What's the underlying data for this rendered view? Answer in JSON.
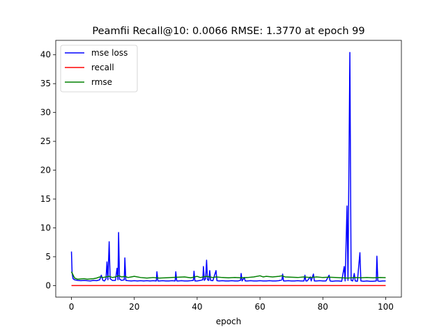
{
  "chart_data": {
    "type": "line",
    "title": "Peamfii Recall@10: 0.0066 RMSE: 1.3770 at epoch 99",
    "xlabel": "epoch",
    "ylabel": "",
    "xlim": [
      -5,
      105
    ],
    "ylim": [
      -2,
      42.5
    ],
    "xticks": [
      0,
      20,
      40,
      60,
      80,
      100
    ],
    "yticks": [
      0,
      5,
      10,
      15,
      20,
      25,
      30,
      35,
      40
    ],
    "grid": false,
    "legend_position": "top-left",
    "series": [
      {
        "name": "mse loss",
        "color": "#0000ff",
        "points": [
          [
            0,
            5.9
          ],
          [
            0.2,
            2.2
          ],
          [
            0.5,
            1.2
          ],
          [
            1,
            1.0
          ],
          [
            2,
            0.9
          ],
          [
            3,
            0.85
          ],
          [
            4,
            0.9
          ],
          [
            5,
            0.85
          ],
          [
            6,
            0.8
          ],
          [
            7,
            0.9
          ],
          [
            8,
            0.85
          ],
          [
            9,
            1.0
          ],
          [
            9.5,
            1.8
          ],
          [
            10,
            0.9
          ],
          [
            10.5,
            0.8
          ],
          [
            11,
            1.2
          ],
          [
            11.3,
            4.1
          ],
          [
            11.6,
            1.0
          ],
          [
            12,
            7.6
          ],
          [
            12.3,
            1.2
          ],
          [
            13,
            0.9
          ],
          [
            14,
            0.9
          ],
          [
            14.5,
            3.0
          ],
          [
            14.8,
            1.0
          ],
          [
            15,
            9.2
          ],
          [
            15.3,
            1.1
          ],
          [
            16,
            0.9
          ],
          [
            16.8,
            1.0
          ],
          [
            17,
            4.8
          ],
          [
            17.3,
            0.9
          ],
          [
            18,
            0.85
          ],
          [
            19,
            0.8
          ],
          [
            20,
            0.85
          ],
          [
            21,
            0.8
          ],
          [
            22,
            0.85
          ],
          [
            23,
            0.8
          ],
          [
            24,
            0.85
          ],
          [
            25,
            0.8
          ],
          [
            26,
            0.85
          ],
          [
            27,
            0.8
          ],
          [
            27.2,
            2.4
          ],
          [
            27.5,
            0.8
          ],
          [
            28,
            0.8
          ],
          [
            29,
            0.85
          ],
          [
            30,
            0.8
          ],
          [
            31,
            0.8
          ],
          [
            32,
            0.85
          ],
          [
            33,
            0.8
          ],
          [
            33.2,
            2.4
          ],
          [
            33.5,
            0.8
          ],
          [
            34,
            0.8
          ],
          [
            35,
            0.85
          ],
          [
            36,
            0.8
          ],
          [
            37,
            0.8
          ],
          [
            38,
            0.85
          ],
          [
            38.8,
            0.9
          ],
          [
            39,
            2.5
          ],
          [
            39.3,
            0.8
          ],
          [
            40,
            0.8
          ],
          [
            41,
            0.9
          ],
          [
            41.8,
            1.0
          ],
          [
            42,
            3.3
          ],
          [
            42.3,
            0.9
          ],
          [
            42.7,
            1.2
          ],
          [
            43,
            4.4
          ],
          [
            43.3,
            1.0
          ],
          [
            43.7,
            0.9
          ],
          [
            44,
            2.6
          ],
          [
            44.3,
            0.9
          ],
          [
            45,
            0.85
          ],
          [
            46,
            2.6
          ],
          [
            46.3,
            0.85
          ],
          [
            47,
            0.8
          ],
          [
            48,
            0.85
          ],
          [
            49,
            0.8
          ],
          [
            50,
            0.8
          ],
          [
            51,
            0.85
          ],
          [
            52,
            0.8
          ],
          [
            53,
            0.8
          ],
          [
            53.8,
            0.9
          ],
          [
            54,
            2.1
          ],
          [
            54.3,
            0.8
          ],
          [
            55,
            1.4
          ],
          [
            55.3,
            0.8
          ],
          [
            56,
            0.8
          ],
          [
            57,
            0.85
          ],
          [
            58,
            0.8
          ],
          [
            59,
            0.8
          ],
          [
            60,
            0.85
          ],
          [
            61,
            0.8
          ],
          [
            62,
            0.8
          ],
          [
            63,
            0.85
          ],
          [
            64,
            0.8
          ],
          [
            65,
            0.8
          ],
          [
            66,
            0.85
          ],
          [
            67,
            1.0
          ],
          [
            67.2,
            2.0
          ],
          [
            67.5,
            0.8
          ],
          [
            68,
            0.8
          ],
          [
            69,
            0.85
          ],
          [
            70,
            0.8
          ],
          [
            71,
            0.8
          ],
          [
            72,
            0.85
          ],
          [
            73,
            0.8
          ],
          [
            74,
            0.8
          ],
          [
            74.3,
            1.8
          ],
          [
            74.6,
            0.8
          ],
          [
            75,
            0.8
          ],
          [
            76,
            1.5
          ],
          [
            76.3,
            0.8
          ],
          [
            77,
            2.0
          ],
          [
            77.3,
            0.8
          ],
          [
            78,
            0.8
          ],
          [
            79,
            0.85
          ],
          [
            80,
            0.8
          ],
          [
            81,
            0.8
          ],
          [
            82,
            1.8
          ],
          [
            82.3,
            0.8
          ],
          [
            83,
            0.75
          ],
          [
            84,
            0.8
          ],
          [
            85,
            0.8
          ],
          [
            86,
            0.75
          ],
          [
            86.8,
            3.3
          ],
          [
            87.1,
            0.8
          ],
          [
            87.7,
            13.8
          ],
          [
            88,
            0.9
          ],
          [
            88.6,
            40.4
          ],
          [
            89,
            0.9
          ],
          [
            89.5,
            0.8
          ],
          [
            90,
            2.1
          ],
          [
            90.3,
            0.8
          ],
          [
            91,
            0.75
          ],
          [
            91.8,
            5.7
          ],
          [
            92.1,
            0.8
          ],
          [
            93,
            0.75
          ],
          [
            94,
            0.8
          ],
          [
            95,
            0.75
          ],
          [
            96,
            0.75
          ],
          [
            97,
            0.8
          ],
          [
            97.2,
            5.1
          ],
          [
            97.5,
            0.8
          ],
          [
            98,
            0.75
          ],
          [
            99,
            0.8
          ],
          [
            100,
            0.8
          ]
        ]
      },
      {
        "name": "recall",
        "color": "#ff0000",
        "points": [
          [
            0,
            0.01
          ],
          [
            10,
            0.01
          ],
          [
            20,
            0.008
          ],
          [
            30,
            0.007
          ],
          [
            40,
            0.007
          ],
          [
            50,
            0.007
          ],
          [
            60,
            0.007
          ],
          [
            70,
            0.007
          ],
          [
            80,
            0.007
          ],
          [
            90,
            0.007
          ],
          [
            100,
            0.0066
          ]
        ]
      },
      {
        "name": "rmse",
        "color": "#008000",
        "points": [
          [
            0,
            2.4
          ],
          [
            1,
            1.3
          ],
          [
            2,
            1.1
          ],
          [
            3,
            1.15
          ],
          [
            4,
            1.2
          ],
          [
            5,
            1.1
          ],
          [
            6,
            1.15
          ],
          [
            7,
            1.2
          ],
          [
            8,
            1.3
          ],
          [
            9,
            1.5
          ],
          [
            10,
            1.4
          ],
          [
            11,
            1.5
          ],
          [
            12,
            1.6
          ],
          [
            13,
            1.4
          ],
          [
            14,
            1.5
          ],
          [
            15,
            1.7
          ],
          [
            16,
            1.5
          ],
          [
            17,
            1.6
          ],
          [
            18,
            1.4
          ],
          [
            19,
            1.5
          ],
          [
            20,
            1.6
          ],
          [
            22,
            1.4
          ],
          [
            24,
            1.3
          ],
          [
            26,
            1.4
          ],
          [
            28,
            1.3
          ],
          [
            30,
            1.35
          ],
          [
            32,
            1.4
          ],
          [
            34,
            1.45
          ],
          [
            36,
            1.5
          ],
          [
            38,
            1.35
          ],
          [
            40,
            1.6
          ],
          [
            41,
            1.4
          ],
          [
            42,
            1.5
          ],
          [
            43,
            1.6
          ],
          [
            44,
            1.5
          ],
          [
            45,
            1.4
          ],
          [
            46,
            1.5
          ],
          [
            48,
            1.4
          ],
          [
            50,
            1.35
          ],
          [
            52,
            1.4
          ],
          [
            54,
            1.35
          ],
          [
            56,
            1.4
          ],
          [
            58,
            1.5
          ],
          [
            60,
            1.7
          ],
          [
            61,
            1.5
          ],
          [
            62,
            1.6
          ],
          [
            64,
            1.5
          ],
          [
            66,
            1.6
          ],
          [
            67,
            1.7
          ],
          [
            68,
            1.5
          ],
          [
            70,
            1.45
          ],
          [
            72,
            1.4
          ],
          [
            74,
            1.5
          ],
          [
            76,
            1.4
          ],
          [
            78,
            1.5
          ],
          [
            80,
            1.4
          ],
          [
            82,
            1.45
          ],
          [
            84,
            1.4
          ],
          [
            86,
            1.35
          ],
          [
            88,
            1.3
          ],
          [
            90,
            1.4
          ],
          [
            92,
            1.35
          ],
          [
            94,
            1.4
          ],
          [
            96,
            1.35
          ],
          [
            98,
            1.4
          ],
          [
            100,
            1.377
          ]
        ]
      }
    ]
  }
}
